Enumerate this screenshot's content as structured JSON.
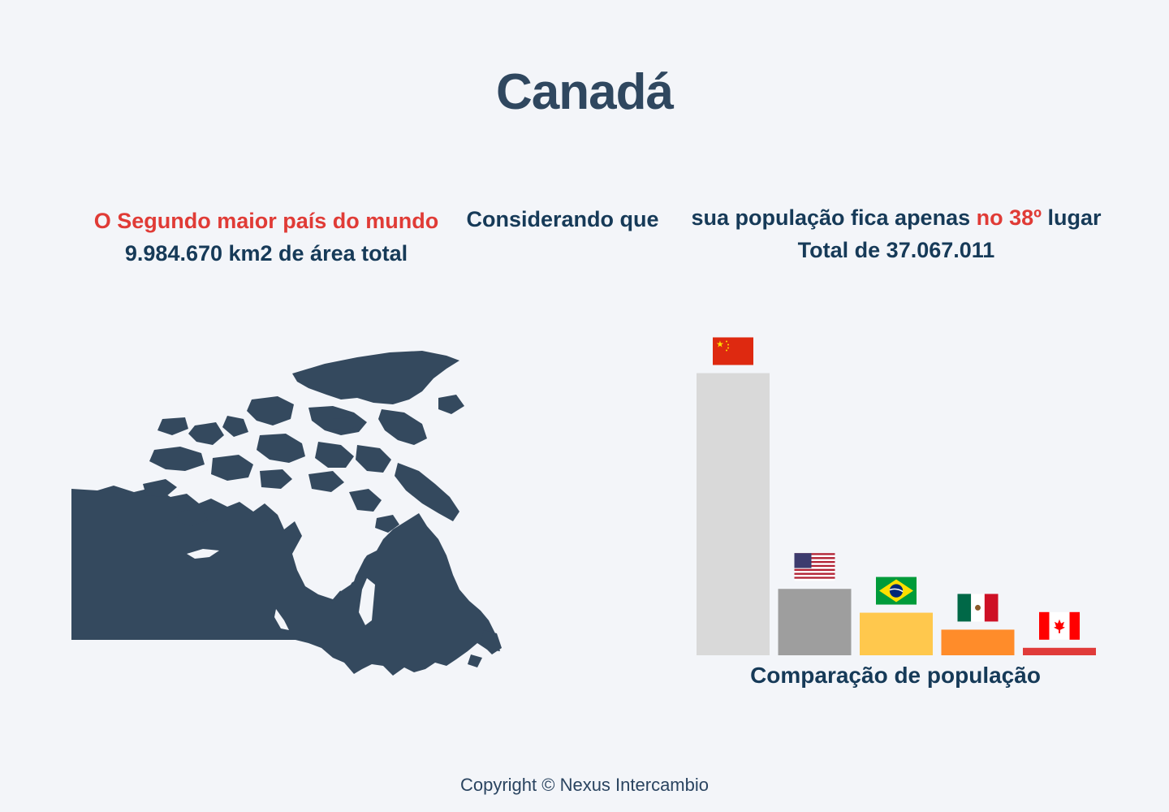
{
  "header": {
    "title": "Canadá"
  },
  "area_info": {
    "highlight": "O Segundo maior país do mundo",
    "total_area": "9.984.670 km2 de área total"
  },
  "connector": {
    "text": "Considerando que"
  },
  "population_info": {
    "line_before": "sua população fica apenas ",
    "rank_highlight": "no 38º",
    "line_after": " lugar",
    "total": "Total de 37.067.011"
  },
  "map": {
    "icon": "canada-map-icon",
    "color": "#34495e"
  },
  "chart_data": {
    "type": "bar",
    "categories": [
      "China",
      "United States",
      "Brazil",
      "Mexico",
      "Canada"
    ],
    "values": [
      1398,
      329,
      211,
      127,
      37
    ],
    "ylim": [
      0,
      1400
    ],
    "colors": [
      "#d9d9d9",
      "#9e9e9e",
      "#ffc84d",
      "#ff8c2a",
      "#e03b3a"
    ],
    "flag_icons": [
      "china-flag-icon",
      "usa-flag-icon",
      "brazil-flag-icon",
      "mexico-flag-icon",
      "canada-flag-icon"
    ],
    "xlabel": "Comparação de população",
    "grid": false,
    "legend": "none"
  },
  "footer": {
    "copyright": "Copyright © Nexus Intercambio"
  }
}
